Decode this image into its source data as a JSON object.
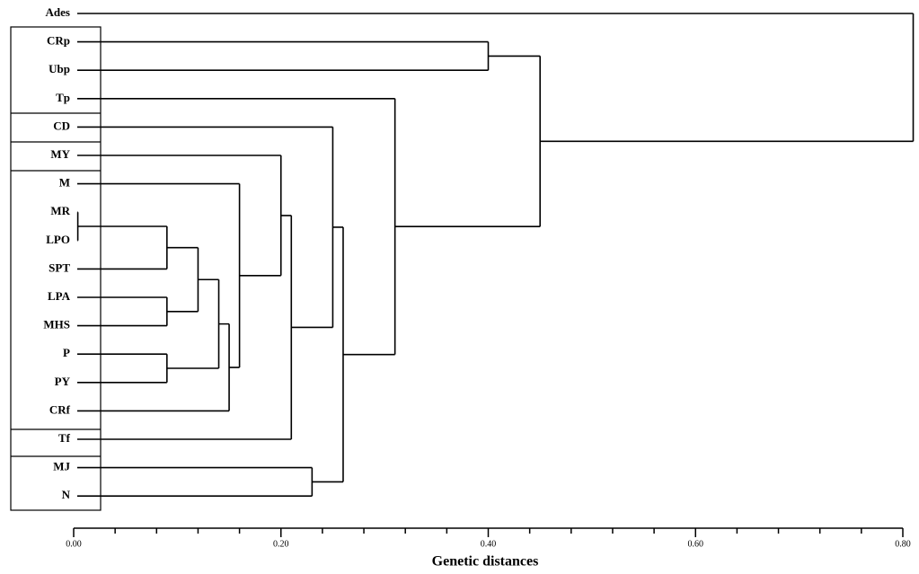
{
  "chart_data": {
    "type": "dendrogram",
    "xlabel": "Genetic distances",
    "xlim": [
      0,
      0.8
    ],
    "xticks": [
      {
        "value": 0,
        "label": "0.00"
      },
      {
        "value": 0.2,
        "label": "0.20"
      },
      {
        "value": 0.4,
        "label": "0.40"
      },
      {
        "value": 0.6,
        "label": "0.60"
      },
      {
        "value": 0.8,
        "label": "0.80"
      }
    ],
    "xminorticks": [
      0.04,
      0.08,
      0.12,
      0.16,
      0.24,
      0.28,
      0.32,
      0.36,
      0.44,
      0.48,
      0.52,
      0.56,
      0.64,
      0.68,
      0.72,
      0.76
    ],
    "color": "#000000",
    "tree": {
      "height": 0.81,
      "children": [
        {
          "label": "Ades"
        },
        {
          "height": 0.45,
          "children": [
            {
              "height": 0.4,
              "children": [
                {
                  "label": "CRp"
                },
                {
                  "label": "Ubp"
                }
              ]
            },
            {
              "height": 0.31,
              "children": [
                {
                  "label": "Tp"
                },
                {
                  "height": 0.26,
                  "children": [
                    {
                      "height": 0.25,
                      "children": [
                        {
                          "label": "CD"
                        },
                        {
                          "height": 0.21,
                          "children": [
                            {
                              "height": 0.2,
                              "children": [
                                {
                                  "label": "MY"
                                },
                                {
                                  "height": 0.16,
                                  "children": [
                                    {
                                      "label": "M"
                                    },
                                    {
                                      "height": 0.15,
                                      "children": [
                                        {
                                          "height": 0.14,
                                          "children": [
                                            {
                                              "height": 0.12,
                                              "children": [
                                                {
                                                  "height": 0.09,
                                                  "children": [
                                                    {
                                                      "height": 0.004,
                                                      "children": [
                                                        {
                                                          "label": "MR"
                                                        },
                                                        {
                                                          "label": "LPO"
                                                        }
                                                      ]
                                                    },
                                                    {
                                                      "label": "SPT"
                                                    }
                                                  ]
                                                },
                                                {
                                                  "height": 0.09,
                                                  "children": [
                                                    {
                                                      "label": "LPA"
                                                    },
                                                    {
                                                      "label": "MHS"
                                                    }
                                                  ]
                                                }
                                              ]
                                            },
                                            {
                                              "height": 0.09,
                                              "children": [
                                                {
                                                  "label": "P"
                                                },
                                                {
                                                  "label": "PY"
                                                }
                                              ]
                                            }
                                          ]
                                        },
                                        {
                                          "label": "CRf"
                                        }
                                      ]
                                    }
                                  ]
                                }
                              ]
                            },
                            {
                              "label": "Tf"
                            }
                          ]
                        }
                      ]
                    },
                    {
                      "height": 0.23,
                      "children": [
                        {
                          "label": "MJ"
                        },
                        {
                          "label": "N"
                        }
                      ]
                    }
                  ]
                }
              ]
            }
          ]
        }
      ]
    }
  }
}
